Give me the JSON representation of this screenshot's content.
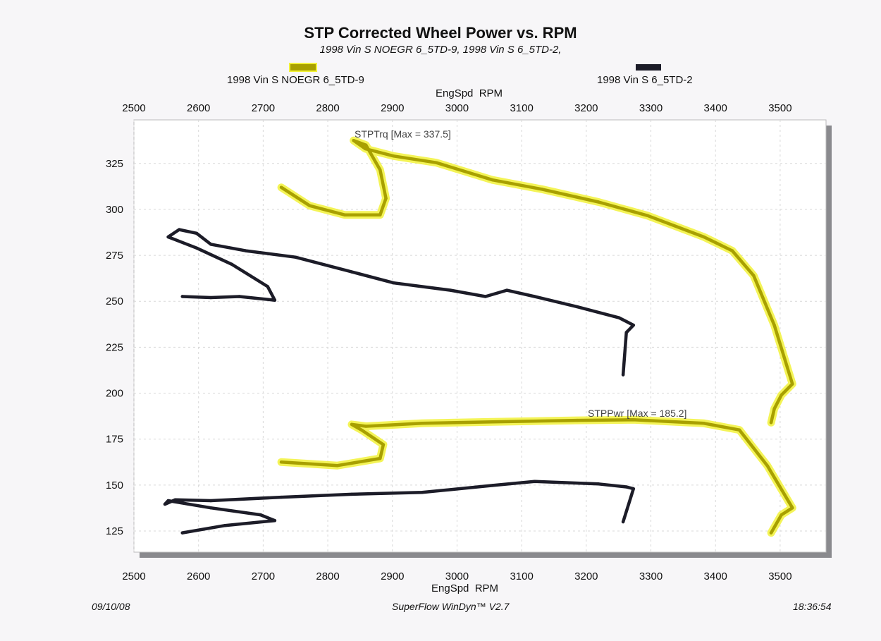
{
  "chart_data": {
    "type": "line",
    "title": "STP Corrected Wheel Power vs. RPM",
    "subtitle": "1998 Vin S NOEGR 6_5TD-9, 1998 Vin S 6_5TD-2,",
    "xlabel": "EngSpd  RPM",
    "ylabel": "",
    "xlim": [
      2500,
      3571
    ],
    "ylim": [
      113.5,
      348.7
    ],
    "xticks": [
      2500,
      2600,
      2700,
      2800,
      2900,
      3000,
      3100,
      3200,
      3300,
      3400,
      3500
    ],
    "yticks": [
      125,
      150,
      175,
      200,
      225,
      250,
      275,
      300,
      325
    ],
    "grid": true,
    "legend": [
      {
        "name": "1998 Vin S NOEGR 6_5TD-9",
        "color": "#a8a000",
        "glow": "#f2f23a"
      },
      {
        "name": "1998 Vin S 6_5TD-2",
        "color": "#1c1c28"
      }
    ],
    "annotations": {
      "torque": "STPTrq [Max = 337.5]",
      "power": "STPPwr [Max = 185.2]"
    },
    "series": [
      {
        "name": "1998 Vin S NOEGR 6_5TD-9 STPTrq",
        "legend": 0,
        "points": [
          [
            2728,
            312
          ],
          [
            2772,
            302
          ],
          [
            2826,
            297
          ],
          [
            2881,
            297
          ],
          [
            2890,
            306
          ],
          [
            2881,
            321.5
          ],
          [
            2859,
            335
          ],
          [
            2840,
            337.5
          ],
          [
            2858,
            333
          ],
          [
            2902,
            329
          ],
          [
            2968,
            325.4
          ],
          [
            3055,
            316
          ],
          [
            3131,
            311
          ],
          [
            3219,
            304
          ],
          [
            3295,
            296.6
          ],
          [
            3382,
            285
          ],
          [
            3426,
            277.5
          ],
          [
            3459,
            264
          ],
          [
            3491,
            237
          ],
          [
            3519,
            205
          ],
          [
            3502,
            199
          ],
          [
            3491,
            191.5
          ],
          [
            3486,
            184
          ]
        ]
      },
      {
        "name": "1998 Vin S 6_5TD-2 STPTrq",
        "legend": 1,
        "points": [
          [
            2575,
            252.6
          ],
          [
            2619,
            252
          ],
          [
            2663,
            252.6
          ],
          [
            2718,
            250.6
          ],
          [
            2707,
            258
          ],
          [
            2652,
            270
          ],
          [
            2597,
            279
          ],
          [
            2553,
            285
          ],
          [
            2570,
            289
          ],
          [
            2597,
            287
          ],
          [
            2619,
            281
          ],
          [
            2673,
            277.5
          ],
          [
            2750,
            274
          ],
          [
            2837,
            266
          ],
          [
            2902,
            260
          ],
          [
            2990,
            256
          ],
          [
            3044,
            252.6
          ],
          [
            3077,
            256
          ],
          [
            3120,
            252.6
          ],
          [
            3186,
            247
          ],
          [
            3251,
            241
          ],
          [
            3273,
            237
          ],
          [
            3262,
            233
          ],
          [
            3257,
            210
          ]
        ]
      },
      {
        "name": "1998 Vin S NOEGR 6_5TD-9 STPPwr",
        "legend": 0,
        "points": [
          [
            2728,
            162.5
          ],
          [
            2815,
            160.6
          ],
          [
            2881,
            164.5
          ],
          [
            2886,
            172
          ],
          [
            2853,
            179.8
          ],
          [
            2837,
            183
          ],
          [
            2859,
            182
          ],
          [
            2946,
            183.6
          ],
          [
            3055,
            184.4
          ],
          [
            3186,
            185.2
          ],
          [
            3273,
            185.5
          ],
          [
            3382,
            183.6
          ],
          [
            3437,
            180
          ],
          [
            3480,
            160.6
          ],
          [
            3519,
            137.6
          ],
          [
            3502,
            133.8
          ],
          [
            3486,
            124
          ]
        ]
      },
      {
        "name": "1998 Vin S 6_5TD-2 STPPwr",
        "legend": 1,
        "points": [
          [
            2575,
            124
          ],
          [
            2641,
            128
          ],
          [
            2718,
            130.7
          ],
          [
            2696,
            133.8
          ],
          [
            2619,
            137.6
          ],
          [
            2553,
            141.5
          ],
          [
            2548,
            139.6
          ],
          [
            2564,
            142
          ],
          [
            2619,
            141.5
          ],
          [
            2728,
            143.4
          ],
          [
            2837,
            145
          ],
          [
            2946,
            146
          ],
          [
            3055,
            149.8
          ],
          [
            3120,
            152
          ],
          [
            3219,
            150.6
          ],
          [
            3262,
            149
          ],
          [
            3273,
            148
          ],
          [
            3257,
            130
          ]
        ]
      }
    ]
  },
  "footer": {
    "date": "09/10/08",
    "software": "SuperFlow WinDyn™ V2.7",
    "time": "18:36:54"
  }
}
